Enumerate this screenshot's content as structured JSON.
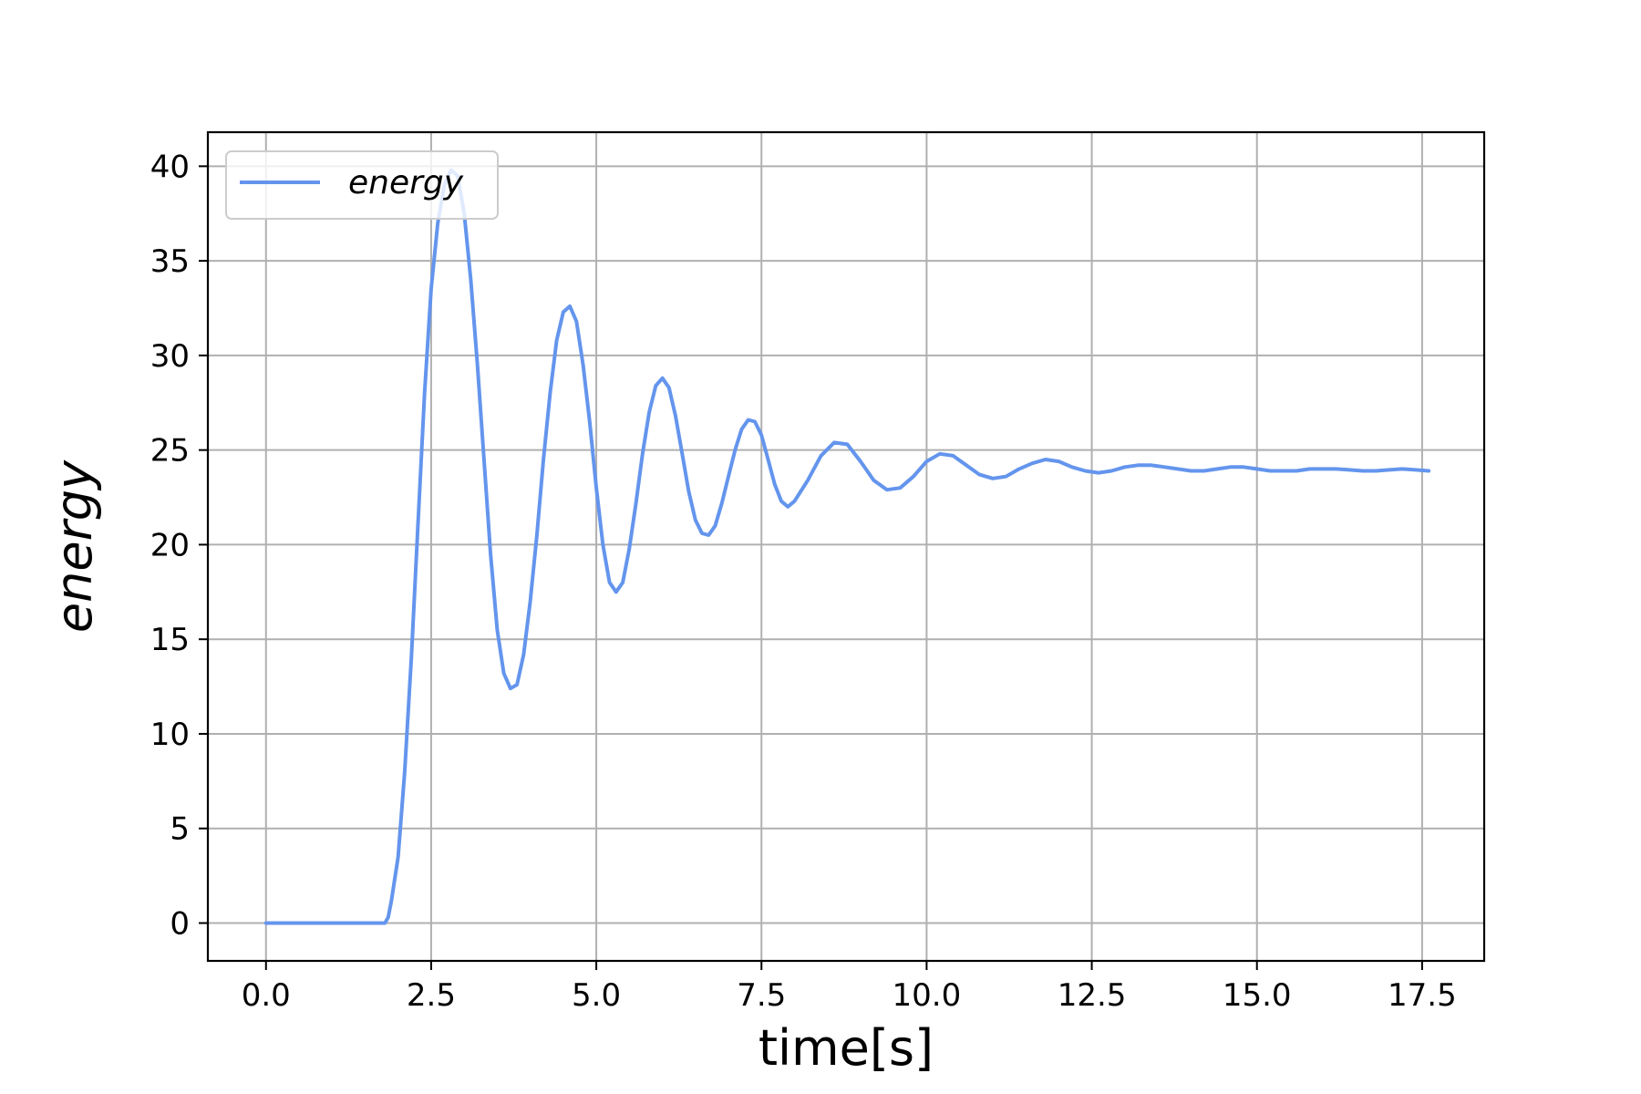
{
  "chart_data": {
    "type": "line",
    "title": "",
    "xlabel": "time[s]",
    "ylabel": "energy",
    "xlim": [
      -0.88,
      18.44
    ],
    "ylim": [
      -2,
      41.8
    ],
    "xticks": [
      0.0,
      2.5,
      5.0,
      7.5,
      10.0,
      12.5,
      15.0,
      17.5
    ],
    "xtick_labels": [
      "0.0",
      "2.5",
      "5.0",
      "7.5",
      "10.0",
      "12.5",
      "15.0",
      "17.5"
    ],
    "yticks": [
      0,
      5,
      10,
      15,
      20,
      25,
      30,
      35,
      40
    ],
    "ytick_labels": [
      "0",
      "5",
      "10",
      "15",
      "20",
      "25",
      "30",
      "35",
      "40"
    ],
    "grid": true,
    "legend": {
      "position": "upper-left",
      "entries": [
        "energy"
      ]
    },
    "series": [
      {
        "name": "energy",
        "color": "#6495ED",
        "x": [
          0.0,
          0.5,
          1.0,
          1.5,
          1.8,
          1.85,
          1.9,
          2.0,
          2.1,
          2.2,
          2.3,
          2.4,
          2.5,
          2.6,
          2.7,
          2.8,
          2.9,
          3.0,
          3.1,
          3.2,
          3.3,
          3.4,
          3.5,
          3.6,
          3.7,
          3.8,
          3.9,
          4.0,
          4.1,
          4.2,
          4.3,
          4.4,
          4.5,
          4.6,
          4.7,
          4.8,
          4.9,
          5.0,
          5.1,
          5.2,
          5.3,
          5.4,
          5.5,
          5.6,
          5.7,
          5.8,
          5.9,
          6.0,
          6.1,
          6.2,
          6.3,
          6.4,
          6.5,
          6.6,
          6.7,
          6.8,
          6.9,
          7.0,
          7.1,
          7.2,
          7.3,
          7.4,
          7.5,
          7.6,
          7.7,
          7.8,
          7.9,
          8.0,
          8.2,
          8.4,
          8.6,
          8.8,
          9.0,
          9.2,
          9.4,
          9.6,
          9.8,
          10.0,
          10.2,
          10.4,
          10.6,
          10.8,
          11.0,
          11.2,
          11.4,
          11.6,
          11.8,
          12.0,
          12.2,
          12.4,
          12.6,
          12.8,
          13.0,
          13.2,
          13.4,
          13.6,
          13.8,
          14.0,
          14.2,
          14.4,
          14.6,
          14.8,
          15.0,
          15.2,
          15.4,
          15.6,
          15.8,
          16.0,
          16.2,
          16.4,
          16.6,
          16.8,
          17.0,
          17.2,
          17.4,
          17.6
        ],
        "y": [
          0.0,
          0.0,
          0.0,
          0.0,
          0.0,
          0.3,
          1.2,
          3.5,
          8.0,
          14.0,
          21.0,
          28.0,
          33.5,
          37.0,
          39.0,
          39.8,
          39.5,
          37.5,
          34.0,
          29.5,
          24.5,
          19.5,
          15.5,
          13.2,
          12.4,
          12.6,
          14.2,
          17.0,
          20.5,
          24.5,
          28.0,
          30.8,
          32.3,
          32.6,
          31.8,
          29.5,
          26.5,
          23.0,
          20.0,
          18.0,
          17.5,
          18.0,
          19.8,
          22.2,
          24.8,
          27.0,
          28.4,
          28.8,
          28.3,
          26.8,
          24.8,
          22.8,
          21.3,
          20.6,
          20.5,
          21.0,
          22.2,
          23.6,
          25.0,
          26.1,
          26.6,
          26.5,
          25.8,
          24.5,
          23.2,
          22.3,
          22.0,
          22.3,
          23.4,
          24.7,
          25.4,
          25.3,
          24.4,
          23.4,
          22.9,
          23.0,
          23.6,
          24.4,
          24.8,
          24.7,
          24.2,
          23.7,
          23.5,
          23.6,
          24.0,
          24.3,
          24.5,
          24.4,
          24.1,
          23.9,
          23.8,
          23.9,
          24.1,
          24.2,
          24.2,
          24.1,
          24.0,
          23.9,
          23.9,
          24.0,
          24.1,
          24.1,
          24.0,
          23.9,
          23.9,
          23.9,
          24.0,
          24.0,
          24.0,
          23.95,
          23.9,
          23.9,
          23.95,
          24.0,
          23.95,
          23.9
        ]
      }
    ]
  }
}
